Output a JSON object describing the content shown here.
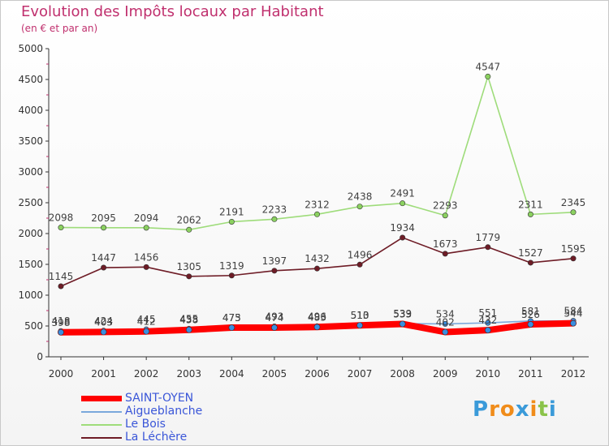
{
  "title": "Evolution des Impôts locaux par Habitant",
  "subtitle": "(en € et par an)",
  "brand": {
    "letters": [
      "P",
      "r",
      "o",
      "x",
      "i",
      "t",
      "i"
    ],
    "colors": [
      "#3a9ad9",
      "#f08c1a",
      "#f08c1a",
      "#3a9ad9",
      "#f08c1a",
      "#8bc34a",
      "#3a9ad9"
    ]
  },
  "chart_data": {
    "type": "line",
    "title": "Evolution des Impôts locaux par Habitant",
    "ylabel": "(en € et par an)",
    "xlabel": "",
    "ylim": [
      0,
      5000
    ],
    "yticks": [
      "0",
      "500",
      "1000",
      "1500",
      "2000",
      "2500",
      "3000",
      "3500",
      "4000",
      "4500",
      "5000"
    ],
    "ytick_values": [
      0,
      500,
      1000,
      1500,
      2000,
      2500,
      3000,
      3500,
      4000,
      4500,
      5000
    ],
    "categories": [
      "2000",
      "2001",
      "2002",
      "2003",
      "2004",
      "2005",
      "2006",
      "2007",
      "2008",
      "2009",
      "2010",
      "2011",
      "2012"
    ],
    "grid": false,
    "legend_position": "bottom-left",
    "series": [
      {
        "name": "La Léchère",
        "color": "#6e1c26",
        "marker": "#6e1c26",
        "values": [
          1145,
          1447,
          1456,
          1305,
          1319,
          1397,
          1432,
          1496,
          1934,
          1673,
          1779,
          1527,
          1595
        ],
        "labels": [
          "1145",
          "1447",
          "1456",
          "1305",
          "1319",
          "1397",
          "1432",
          "1496",
          "1934",
          "1673",
          "1779",
          "1527",
          "1595"
        ]
      },
      {
        "name": "Le Bois",
        "color": "#9edc7a",
        "marker": "#8bd160",
        "values": [
          2098,
          2095,
          2094,
          2062,
          2191,
          2233,
          2312,
          2438,
          2491,
          2293,
          4547,
          2311,
          2345
        ],
        "labels": [
          "2098",
          "2095",
          "2094",
          "2062",
          "2191",
          "2233",
          "2312",
          "2438",
          "2491",
          "2293",
          "4547",
          "2311",
          "2345"
        ]
      },
      {
        "name": "Aigueblanche",
        "color": "#7aa8dc",
        "marker": "#3a8ee0",
        "values": [
          418,
          424,
          445,
          455,
          475,
          493,
          496,
          513,
          539,
          534,
          551,
          581,
          584
        ],
        "labels": [
          "418",
          "424",
          "445",
          "455",
          "475",
          "493",
          "496",
          "513",
          "539",
          "534",
          "551",
          "581",
          "584"
        ]
      },
      {
        "name": "SAINT-OYEN",
        "color": "#ff0000",
        "marker": "#3a8ee0",
        "values": [
          398,
          403,
          412,
          438,
          473,
          474,
          483,
          510,
          533,
          402,
          432,
          526,
          544
        ],
        "labels": [
          "398",
          "403",
          "412",
          "438",
          "473",
          "474",
          "483",
          "510",
          "533",
          "402",
          "432",
          "526",
          "544"
        ]
      }
    ]
  },
  "legend": [
    {
      "name": "SAINT-OYEN",
      "color": "#ff0000",
      "thick": true
    },
    {
      "name": "Aigueblanche",
      "color": "#7aa8dc",
      "thick": false
    },
    {
      "name": "Le Bois",
      "color": "#9edc7a",
      "thick": false
    },
    {
      "name": "La Léchère",
      "color": "#6e1c26",
      "thick": false
    }
  ]
}
